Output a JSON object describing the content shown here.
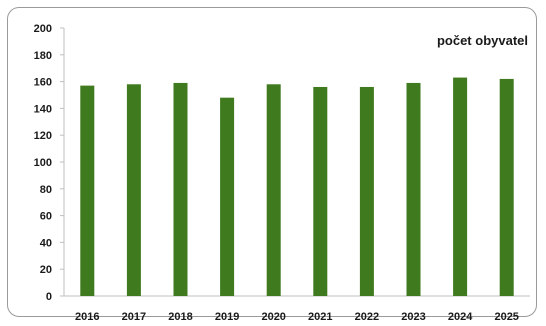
{
  "chart_data": {
    "type": "bar",
    "categories": [
      "2016",
      "2017",
      "2018",
      "2019",
      "2020",
      "2021",
      "2022",
      "2023",
      "2024",
      "2025"
    ],
    "series": [
      {
        "name": "počet obyvatel",
        "values": [
          157,
          158,
          159,
          148,
          158,
          156,
          156,
          159,
          163,
          162
        ]
      }
    ],
    "ylim": [
      0,
      200
    ],
    "yticks": [
      0,
      20,
      40,
      60,
      80,
      100,
      120,
      140,
      160,
      180,
      200
    ],
    "bar_color": "#3f7a1f",
    "grid": false,
    "legend_position": "top-right"
  }
}
